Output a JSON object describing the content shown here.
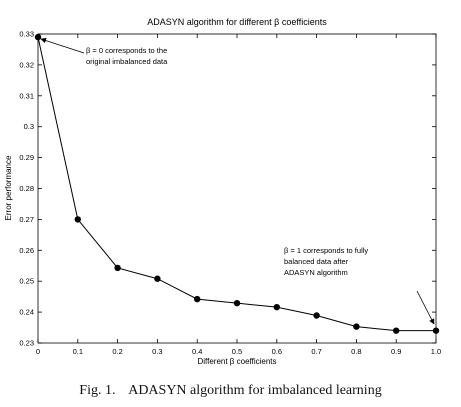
{
  "chart_data": {
    "type": "line",
    "title": "ADASYN algorithm for different β coefficients",
    "xlabel": "Different β coefficients",
    "ylabel": "Error performance",
    "xlim": [
      0,
      1.0
    ],
    "ylim": [
      0.23,
      0.33
    ],
    "x_ticks": [
      "0",
      "0.1",
      "0.2",
      "0.3",
      "0.4",
      "0.5",
      "0.6",
      "0.7",
      "0.8",
      "0.9",
      "1.0"
    ],
    "y_ticks": [
      "0.23",
      "0.24",
      "0.25",
      "0.26",
      "0.27",
      "0.28",
      "0.29",
      "0.3",
      "0.31",
      "0.32",
      "0.33"
    ],
    "grid": false,
    "series": [
      {
        "x": [
          0,
          0.1,
          0.2,
          0.3,
          0.4,
          0.5,
          0.6,
          0.7,
          0.8,
          0.9,
          1.0
        ],
        "values": [
          0.329,
          0.27,
          0.2543,
          0.2508,
          0.2442,
          0.2429,
          0.2416,
          0.2389,
          0.2353,
          0.234,
          0.234
        ],
        "marker": "circle",
        "color": "#000000"
      }
    ],
    "annotations": [
      {
        "lines": [
          "β = 0 corresponds to the",
          "original imbalanced data"
        ],
        "points_to": {
          "x": 0,
          "y": 0.329
        }
      },
      {
        "lines": [
          "β = 1 corresponds to fully",
          "balanced data after",
          "ADASYN algorithm"
        ],
        "points_to": {
          "x": 1.0,
          "y": 0.234
        }
      }
    ]
  },
  "caption": {
    "label": "Fig. 1.",
    "text": "ADASYN algorithm for imbalanced learning"
  }
}
